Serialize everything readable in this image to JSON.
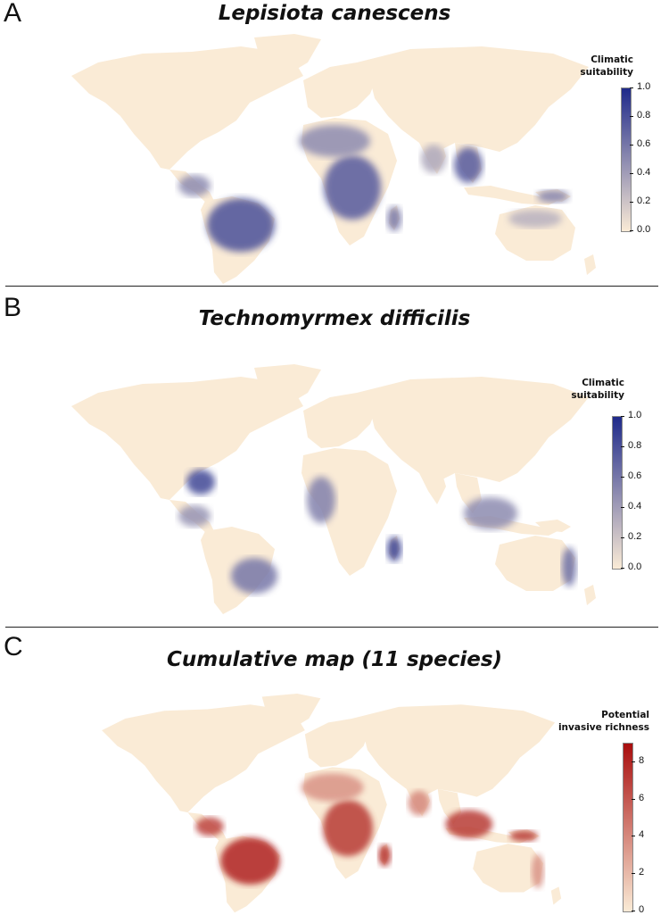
{
  "colors": {
    "land_base": "#faebd6",
    "suitability_high": "#1f2a8a",
    "richness_high": "#a80e0e"
  },
  "panels": [
    {
      "letter": "A",
      "title": "Lepisiota canescens",
      "legend_title_line1": "Climatic",
      "legend_title_line2": "suitability",
      "ticks": [
        "1.0",
        "0.8",
        "0.6",
        "0.4",
        "0.2",
        "0.0"
      ],
      "scale": "suitability",
      "scale_range": [
        0.0,
        1.0
      ],
      "hotspots": [
        {
          "region": "amazon-brazil",
          "level": 0.8
        },
        {
          "region": "central-africa",
          "level": 0.75
        },
        {
          "region": "west-africa-sahel",
          "level": 0.5
        },
        {
          "region": "madagascar",
          "level": 0.6
        },
        {
          "region": "indochina",
          "level": 0.75
        },
        {
          "region": "central-america",
          "level": 0.5
        },
        {
          "region": "india",
          "level": 0.35
        },
        {
          "region": "australia-north",
          "level": 0.3
        },
        {
          "region": "new-guinea",
          "level": 0.55
        }
      ]
    },
    {
      "letter": "B",
      "title": "Technomyrmex difficilis",
      "legend_title_line1": "Climatic",
      "legend_title_line2": "suitability",
      "ticks": [
        "1.0",
        "0.8",
        "0.6",
        "0.4",
        "0.2",
        "0.0"
      ],
      "scale": "suitability",
      "scale_range": [
        0.0,
        1.0
      ],
      "hotspots": [
        {
          "region": "florida-caribbean",
          "level": 0.85
        },
        {
          "region": "southeast-brazil",
          "level": 0.6
        },
        {
          "region": "madagascar",
          "level": 0.9
        },
        {
          "region": "west-africa-coast",
          "level": 0.55
        },
        {
          "region": "southeast-asia",
          "level": 0.5
        },
        {
          "region": "east-australia",
          "level": 0.65
        },
        {
          "region": "central-america",
          "level": 0.45
        }
      ]
    },
    {
      "letter": "C",
      "title": "Cumulative map (11 species)",
      "legend_title_line1": "Potential",
      "legend_title_line2": "invasive richness",
      "ticks": [
        "8",
        "6",
        "4",
        "2",
        "0"
      ],
      "scale": "richness",
      "scale_range": [
        0,
        9
      ],
      "hotspots": [
        {
          "region": "amazon-brazil",
          "level": 0.9
        },
        {
          "region": "central-africa",
          "level": 0.8
        },
        {
          "region": "madagascar",
          "level": 0.85
        },
        {
          "region": "central-america",
          "level": 0.75
        },
        {
          "region": "southeast-asia",
          "level": 0.8
        },
        {
          "region": "new-guinea",
          "level": 0.8
        },
        {
          "region": "west-africa-sahel",
          "level": 0.4
        },
        {
          "region": "india",
          "level": 0.45
        },
        {
          "region": "east-australia",
          "level": 0.4
        }
      ]
    }
  ]
}
